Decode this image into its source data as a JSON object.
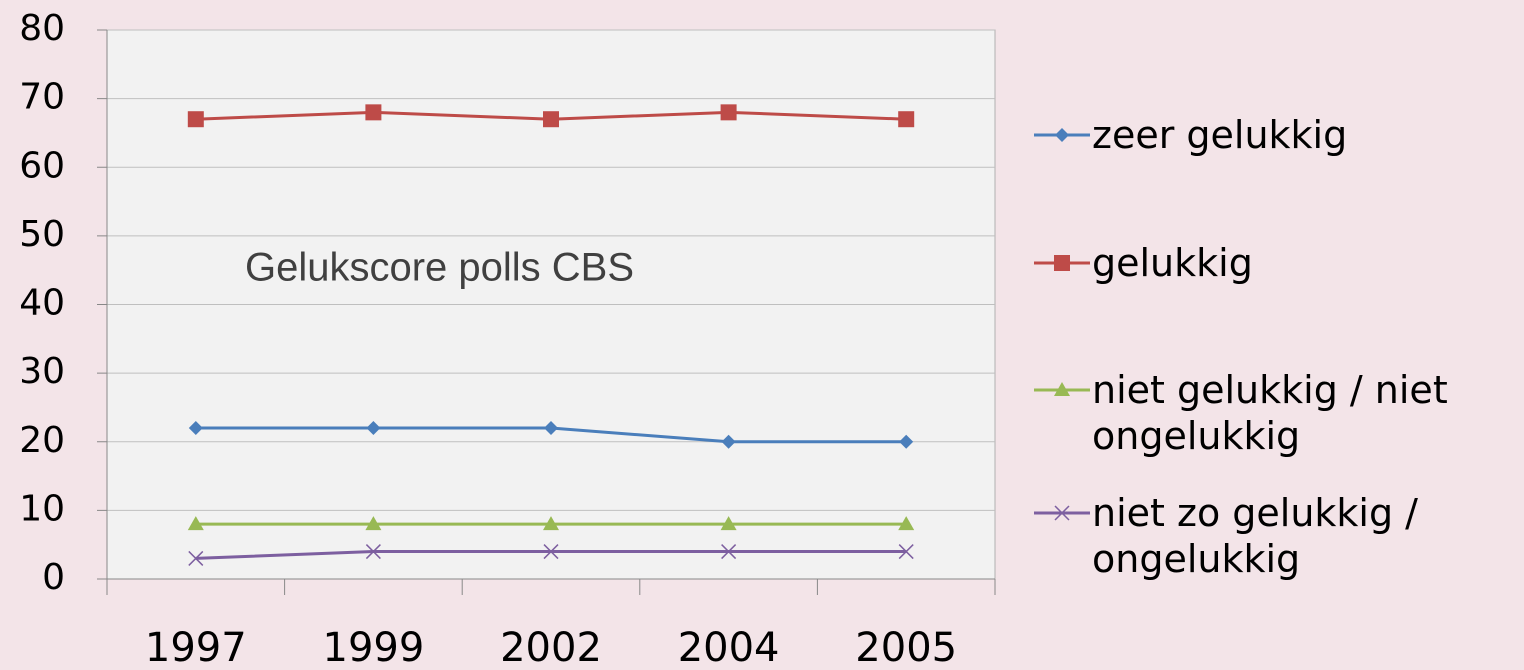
{
  "chart_data": {
    "type": "line",
    "annotation": "Gelukscore polls CBS",
    "categories": [
      "1997",
      "1999",
      "2002",
      "2004",
      "2005"
    ],
    "series": [
      {
        "name": "zeer gelukkig",
        "color": "#4a7ebb",
        "marker": "diamond",
        "values": [
          22,
          22,
          22,
          20,
          20
        ]
      },
      {
        "name": "gelukkig",
        "color": "#be4b48",
        "marker": "square",
        "values": [
          67,
          68,
          67,
          68,
          67
        ]
      },
      {
        "name": "niet gelukkig / niet ongelukkig",
        "color": "#98b954",
        "marker": "triangle",
        "values": [
          8,
          8,
          8,
          8,
          8
        ]
      },
      {
        "name": "niet zo gelukkig / ongelukkig",
        "color": "#7d5fa0",
        "marker": "x",
        "values": [
          3,
          4,
          4,
          4,
          4
        ]
      }
    ],
    "ylim": [
      0,
      80
    ],
    "yticks": [
      0,
      10,
      20,
      30,
      40,
      50,
      60,
      70,
      80
    ],
    "grid": true,
    "legend": "right"
  }
}
